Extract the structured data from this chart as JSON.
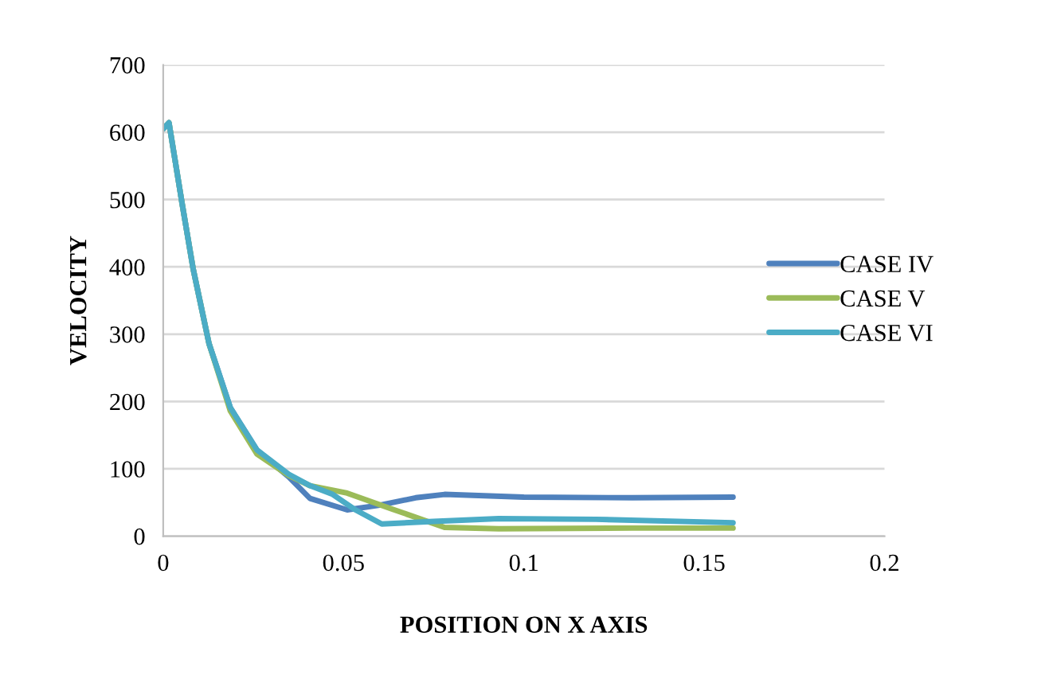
{
  "chart_data": {
    "type": "line",
    "xlabel": "POSITION ON X AXIS",
    "ylabel": "VELOCITY",
    "xlim": [
      0,
      0.2
    ],
    "xticks": [
      0,
      0.05,
      0.1,
      0.15,
      0.2
    ],
    "ylim": [
      0,
      700
    ],
    "yticks": [
      0,
      100,
      200,
      300,
      400,
      500,
      600,
      700
    ],
    "grid": "y",
    "legend": "right",
    "marker": "none",
    "line_style": "solid",
    "series": [
      {
        "name": "CASE IV",
        "color": "#4f81bd",
        "x": [
          0,
          0.0016,
          0.0053,
          0.0083,
          0.0127,
          0.0186,
          0.026,
          0.0348,
          0.0407,
          0.051,
          0.06,
          0.07,
          0.078,
          0.1,
          0.13,
          0.158
        ],
        "values": [
          605,
          614,
          492,
          397,
          286,
          191,
          128,
          88,
          56,
          39,
          46,
          57,
          62,
          58,
          57,
          58
        ]
      },
      {
        "name": "CASE V",
        "color": "#9bbb59",
        "x": [
          0,
          0.0016,
          0.0053,
          0.0083,
          0.0127,
          0.0186,
          0.026,
          0.0348,
          0.0407,
          0.051,
          0.0636,
          0.078,
          0.093,
          0.13,
          0.158
        ],
        "values": [
          605,
          614,
          492,
          397,
          286,
          186,
          122,
          90,
          75,
          64,
          40,
          13,
          11,
          12,
          12
        ]
      },
      {
        "name": "CASE VI",
        "color": "#4bacc6",
        "x": [
          0,
          0.0016,
          0.0053,
          0.0083,
          0.0127,
          0.0186,
          0.026,
          0.0348,
          0.0407,
          0.047,
          0.053,
          0.0606,
          0.075,
          0.093,
          0.12,
          0.158
        ],
        "values": [
          605,
          614,
          492,
          397,
          286,
          191,
          128,
          92,
          75,
          62,
          40,
          18,
          22,
          26,
          25,
          20
        ]
      }
    ]
  }
}
